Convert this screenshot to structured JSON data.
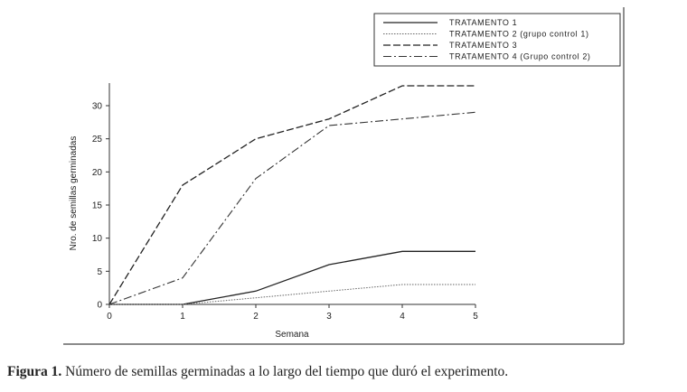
{
  "chart_data": {
    "type": "line",
    "xlabel": "Semana",
    "ylabel": "Nro. de semillas germinadas",
    "x": [
      0,
      1,
      2,
      3,
      4,
      5
    ],
    "xlim": [
      0,
      5
    ],
    "ylim": [
      0,
      33
    ],
    "xticks": [
      "0",
      "1",
      "2",
      "3",
      "4",
      "5"
    ],
    "yticks": [
      "0",
      "5",
      "10",
      "15",
      "20",
      "25",
      "30"
    ],
    "grid": false,
    "legend_position": "top-right",
    "series": [
      {
        "name": "TRATAMENTO 1",
        "values": [
          0,
          0,
          2,
          6,
          8,
          8
        ],
        "dash": "solid"
      },
      {
        "name": "TRATAMENTO 2 (grupo control 1)",
        "values": [
          0,
          0,
          1,
          2,
          3,
          3
        ],
        "dash": "dotted"
      },
      {
        "name": "TRATAMENTO 3",
        "values": [
          0,
          18,
          25,
          28,
          33,
          33
        ],
        "dash": "dashed"
      },
      {
        "name": "TRATAMENTO 4 (Grupo control 2)",
        "values": [
          0,
          4,
          19,
          27,
          28,
          29
        ],
        "dash": "dashdot"
      }
    ]
  },
  "caption": {
    "label": "Figura 1.",
    "text": " Número de semillas germinadas a lo largo del tiempo que duró el experimento."
  }
}
